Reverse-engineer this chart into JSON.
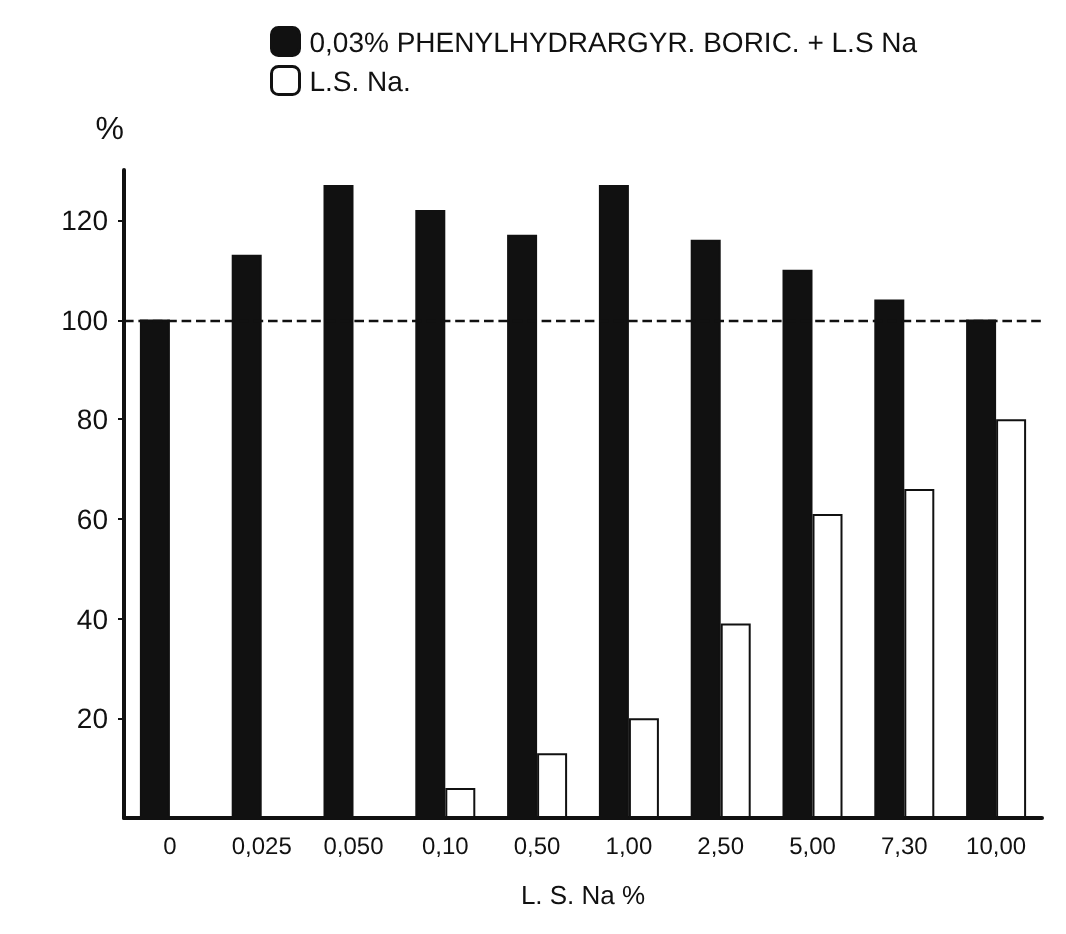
{
  "chart_data": {
    "type": "bar",
    "xlabel": "L. S. Na %",
    "ylabel": "%",
    "categories": [
      "0",
      "0,025",
      "0,050",
      "0,10",
      "0,50",
      "1,00",
      "2,50",
      "5,00",
      "7,30",
      "10,00"
    ],
    "series": [
      {
        "name": "0,03% PHENYLHYDRARGYR. BORIC. + L.S Na",
        "color": "#111111",
        "values": [
          100,
          113,
          127,
          122,
          117,
          127,
          116,
          110,
          104,
          100
        ]
      },
      {
        "name": "L.S. Na.",
        "color": "#ffffff",
        "values": [
          null,
          null,
          null,
          6,
          13,
          20,
          39,
          61,
          66,
          80
        ]
      }
    ],
    "ylim": [
      0,
      130
    ],
    "yticks": [
      20,
      40,
      60,
      80,
      100,
      120
    ],
    "ref_lines": [
      {
        "axis": "y",
        "value": 100,
        "line_style": "dashed",
        "color": "#111111"
      }
    ],
    "legend": "top",
    "grid": false
  }
}
